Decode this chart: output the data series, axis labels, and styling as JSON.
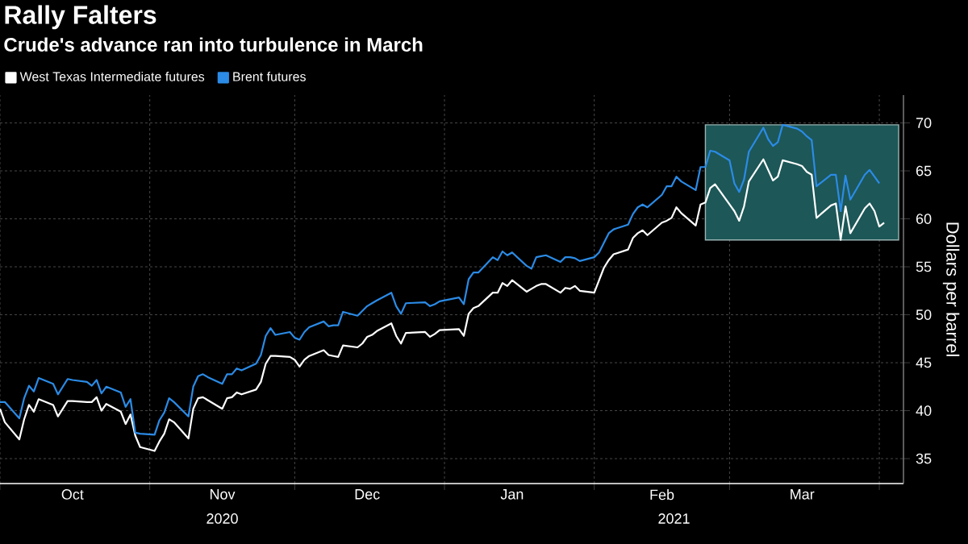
{
  "chart_data": {
    "type": "line",
    "title": "Rally Falters",
    "subtitle": "Crude's advance ran into turbulence in March",
    "ylabel": "Dollars per barrel",
    "series": [
      {
        "name": "West Texas Intermediate futures",
        "color": "#ffffff",
        "x": [
          "2020-10-01",
          "2020-10-02",
          "2020-10-05",
          "2020-10-06",
          "2020-10-07",
          "2020-10-08",
          "2020-10-09",
          "2020-10-12",
          "2020-10-13",
          "2020-10-15",
          "2020-10-16",
          "2020-10-19",
          "2020-10-20",
          "2020-10-21",
          "2020-10-22",
          "2020-10-23",
          "2020-10-26",
          "2020-10-27",
          "2020-10-28",
          "2020-10-29",
          "2020-10-30",
          "2020-11-02",
          "2020-11-03",
          "2020-11-04",
          "2020-11-05",
          "2020-11-06",
          "2020-11-09",
          "2020-11-10",
          "2020-11-11",
          "2020-11-12",
          "2020-11-13",
          "2020-11-16",
          "2020-11-17",
          "2020-11-18",
          "2020-11-19",
          "2020-11-20",
          "2020-11-23",
          "2020-11-24",
          "2020-11-25",
          "2020-11-26",
          "2020-11-27",
          "2020-11-30",
          "2020-12-01",
          "2020-12-02",
          "2020-12-03",
          "2020-12-04",
          "2020-12-07",
          "2020-12-08",
          "2020-12-09",
          "2020-12-10",
          "2020-12-11",
          "2020-12-14",
          "2020-12-15",
          "2020-12-16",
          "2020-12-17",
          "2020-12-18",
          "2020-12-21",
          "2020-12-22",
          "2020-12-23",
          "2020-12-24",
          "2020-12-28",
          "2020-12-29",
          "2020-12-30",
          "2020-12-31",
          "2021-01-04",
          "2021-01-05",
          "2021-01-06",
          "2021-01-07",
          "2021-01-08",
          "2021-01-11",
          "2021-01-12",
          "2021-01-13",
          "2021-01-14",
          "2021-01-15",
          "2021-01-18",
          "2021-01-19",
          "2021-01-20",
          "2021-01-21",
          "2021-01-22",
          "2021-01-25",
          "2021-01-26",
          "2021-01-27",
          "2021-01-28",
          "2021-01-29",
          "2021-02-01",
          "2021-02-02",
          "2021-02-03",
          "2021-02-04",
          "2021-02-05",
          "2021-02-08",
          "2021-02-09",
          "2021-02-10",
          "2021-02-11",
          "2021-02-12",
          "2021-02-15",
          "2021-02-16",
          "2021-02-17",
          "2021-02-18",
          "2021-02-19",
          "2021-02-22",
          "2021-02-23",
          "2021-02-24",
          "2021-02-25",
          "2021-02-26",
          "2021-03-01",
          "2021-03-02",
          "2021-03-03",
          "2021-03-04",
          "2021-03-05",
          "2021-03-08",
          "2021-03-09",
          "2021-03-10",
          "2021-03-11",
          "2021-03-12",
          "2021-03-15",
          "2021-03-16",
          "2021-03-17",
          "2021-03-18",
          "2021-03-19",
          "2021-03-22",
          "2021-03-23",
          "2021-03-24",
          "2021-03-25",
          "2021-03-26",
          "2021-03-29",
          "2021-03-30",
          "2021-03-31",
          "2021-04-01",
          "2021-04-02"
        ],
        "values": [
          40.2,
          38.8,
          37.0,
          39.1,
          40.6,
          39.9,
          41.2,
          40.6,
          39.4,
          41.0,
          41.0,
          40.9,
          40.9,
          41.4,
          40.0,
          40.7,
          39.9,
          38.6,
          39.6,
          37.4,
          36.2,
          35.8,
          36.8,
          37.6,
          39.1,
          38.8,
          37.1,
          40.2,
          41.3,
          41.4,
          41.1,
          40.2,
          41.3,
          41.4,
          41.9,
          41.7,
          42.2,
          43.0,
          44.9,
          45.7,
          45.7,
          45.6,
          45.3,
          44.6,
          45.3,
          45.7,
          46.3,
          45.8,
          45.7,
          45.6,
          46.8,
          46.6,
          47.0,
          47.7,
          47.9,
          48.3,
          49.1,
          47.8,
          47.0,
          48.1,
          48.2,
          47.7,
          48.0,
          48.4,
          48.5,
          47.8,
          50.1,
          50.7,
          50.9,
          52.3,
          52.3,
          53.3,
          53.0,
          53.6,
          52.4,
          52.7,
          53.0,
          53.2,
          53.2,
          52.3,
          52.8,
          52.7,
          53.0,
          52.5,
          52.3,
          53.6,
          54.9,
          55.7,
          56.3,
          56.8,
          58.0,
          58.5,
          58.8,
          58.3,
          59.6,
          59.8,
          60.1,
          61.2,
          60.6,
          59.3,
          61.5,
          61.7,
          63.2,
          63.6,
          61.5,
          60.8,
          59.8,
          61.3,
          63.9,
          66.2,
          65.1,
          64.0,
          64.4,
          66.1,
          65.7,
          65.5,
          64.9,
          64.6,
          60.1,
          61.4,
          61.6,
          57.8,
          61.3,
          58.5,
          61.1,
          61.6,
          60.8,
          59.2,
          59.6
        ]
      },
      {
        "name": "Brent futures",
        "color": "#2b8be6",
        "x": [
          "2020-10-01",
          "2020-10-02",
          "2020-10-05",
          "2020-10-06",
          "2020-10-07",
          "2020-10-08",
          "2020-10-09",
          "2020-10-12",
          "2020-10-13",
          "2020-10-15",
          "2020-10-16",
          "2020-10-19",
          "2020-10-20",
          "2020-10-21",
          "2020-10-22",
          "2020-10-23",
          "2020-10-26",
          "2020-10-27",
          "2020-10-28",
          "2020-10-29",
          "2020-10-30",
          "2020-11-02",
          "2020-11-03",
          "2020-11-04",
          "2020-11-05",
          "2020-11-06",
          "2020-11-09",
          "2020-11-10",
          "2020-11-11",
          "2020-11-12",
          "2020-11-13",
          "2020-11-16",
          "2020-11-17",
          "2020-11-18",
          "2020-11-19",
          "2020-11-20",
          "2020-11-23",
          "2020-11-24",
          "2020-11-25",
          "2020-11-26",
          "2020-11-27",
          "2020-11-30",
          "2020-12-01",
          "2020-12-02",
          "2020-12-03",
          "2020-12-04",
          "2020-12-07",
          "2020-12-08",
          "2020-12-09",
          "2020-12-10",
          "2020-12-11",
          "2020-12-14",
          "2020-12-15",
          "2020-12-16",
          "2020-12-17",
          "2020-12-18",
          "2020-12-21",
          "2020-12-22",
          "2020-12-23",
          "2020-12-24",
          "2020-12-28",
          "2020-12-29",
          "2020-12-30",
          "2020-12-31",
          "2021-01-04",
          "2021-01-05",
          "2021-01-06",
          "2021-01-07",
          "2021-01-08",
          "2021-01-11",
          "2021-01-12",
          "2021-01-13",
          "2021-01-14",
          "2021-01-15",
          "2021-01-18",
          "2021-01-19",
          "2021-01-20",
          "2021-01-21",
          "2021-01-22",
          "2021-01-25",
          "2021-01-26",
          "2021-01-27",
          "2021-01-28",
          "2021-01-29",
          "2021-02-01",
          "2021-02-02",
          "2021-02-03",
          "2021-02-04",
          "2021-02-05",
          "2021-02-08",
          "2021-02-09",
          "2021-02-10",
          "2021-02-11",
          "2021-02-12",
          "2021-02-15",
          "2021-02-16",
          "2021-02-17",
          "2021-02-18",
          "2021-02-19",
          "2021-02-22",
          "2021-02-23",
          "2021-02-24",
          "2021-02-25",
          "2021-02-26",
          "2021-03-01",
          "2021-03-02",
          "2021-03-03",
          "2021-03-04",
          "2021-03-05",
          "2021-03-08",
          "2021-03-09",
          "2021-03-10",
          "2021-03-11",
          "2021-03-12",
          "2021-03-15",
          "2021-03-16",
          "2021-03-17",
          "2021-03-18",
          "2021-03-19",
          "2021-03-22",
          "2021-03-23",
          "2021-03-24",
          "2021-03-25",
          "2021-03-26",
          "2021-03-29",
          "2021-03-30",
          "2021-03-31",
          "2021-04-01"
        ],
        "values": [
          40.9,
          40.9,
          39.2,
          41.3,
          42.6,
          42.0,
          43.4,
          42.8,
          41.7,
          43.3,
          43.2,
          43.0,
          42.6,
          43.2,
          41.8,
          42.5,
          41.9,
          40.4,
          41.2,
          37.7,
          37.6,
          37.5,
          39.0,
          39.8,
          41.3,
          40.9,
          39.4,
          42.5,
          43.6,
          43.8,
          43.5,
          42.8,
          43.8,
          43.8,
          44.4,
          44.2,
          44.9,
          45.8,
          47.8,
          48.6,
          47.9,
          48.2,
          47.6,
          47.4,
          48.2,
          48.7,
          49.3,
          48.8,
          48.9,
          48.9,
          50.3,
          49.9,
          50.4,
          50.9,
          51.2,
          51.5,
          52.3,
          50.9,
          50.1,
          51.2,
          51.3,
          50.9,
          51.1,
          51.4,
          51.8,
          51.1,
          53.7,
          54.4,
          54.4,
          56.0,
          55.7,
          56.6,
          56.2,
          56.5,
          55.1,
          54.8,
          56.0,
          56.1,
          56.2,
          55.5,
          56.0,
          56.0,
          55.9,
          55.6,
          56.0,
          56.5,
          57.5,
          58.5,
          58.9,
          59.4,
          60.5,
          61.2,
          61.5,
          61.2,
          62.5,
          63.4,
          63.4,
          64.4,
          63.9,
          63.0,
          65.4,
          65.4,
          67.1,
          67.0,
          66.1,
          63.7,
          62.8,
          64.1,
          67.0,
          69.5,
          68.3,
          67.6,
          68.0,
          69.8,
          69.4,
          69.1,
          68.6,
          68.2,
          63.4,
          64.6,
          64.6,
          60.8,
          64.5,
          62.0,
          64.6,
          65.1,
          64.4,
          63.7
        ]
      }
    ],
    "xlim": [
      "2020-10-01",
      "2021-04-06"
    ],
    "xticks": [
      {
        "value": "2020-10-01",
        "label": null
      },
      {
        "value": "2020-10-16",
        "label": "Oct"
      },
      {
        "value": "2020-11-01",
        "label": null
      },
      {
        "value": "2020-11-16",
        "label": "Nov"
      },
      {
        "value": "2020-12-01",
        "label": null
      },
      {
        "value": "2020-12-16",
        "label": "Dec"
      },
      {
        "value": "2021-01-01",
        "label": null
      },
      {
        "value": "2021-01-15",
        "label": "Jan"
      },
      {
        "value": "2021-02-01",
        "label": null
      },
      {
        "value": "2021-02-15",
        "label": "Feb"
      },
      {
        "value": "2021-03-01",
        "label": null
      },
      {
        "value": "2021-03-16",
        "label": "Mar"
      },
      {
        "value": "2021-04-01",
        "label": null
      }
    ],
    "ylim": [
      32.4,
      72.9
    ],
    "yticks": [
      35,
      40,
      45,
      50,
      55,
      60,
      65,
      70
    ],
    "grid": true,
    "legend": "top left",
    "line_style": "solid",
    "bands": [
      {
        "axis": "x",
        "from": "2021-02-24",
        "to": "2021-04-05",
        "color": "#1d5757"
      }
    ],
    "annotations": [
      "2020",
      "2021"
    ]
  }
}
